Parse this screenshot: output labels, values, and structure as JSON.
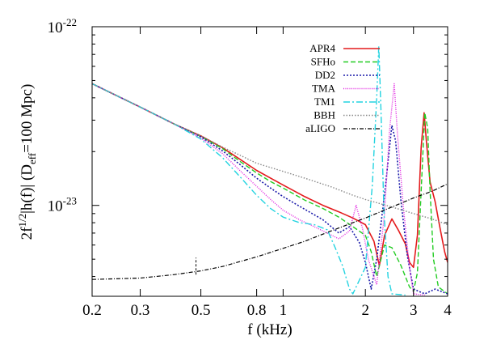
{
  "chart_data": {
    "type": "line",
    "xlabel": "f (kHz)",
    "ylabel_parts": [
      "2f",
      "1/2",
      "|h(f)| (D",
      "eff",
      "=100 Mpc)"
    ],
    "x_scale": "log",
    "y_scale": "log",
    "xlim": [
      0.2,
      4
    ],
    "ylim": [
      3.1e-24,
      1e-22
    ],
    "grid": false,
    "legend_position": "top-right",
    "x_ticks": [
      {
        "value": 0.2,
        "label": "0.2"
      },
      {
        "value": 0.3,
        "label": "0.3"
      },
      {
        "value": 0.5,
        "label": "0.5"
      },
      {
        "value": 0.8,
        "label": "0.8"
      },
      {
        "value": 1,
        "label": "1"
      },
      {
        "value": 2,
        "label": "2"
      },
      {
        "value": 3,
        "label": "3"
      },
      {
        "value": 4,
        "label": "4"
      }
    ],
    "y_ticks": [
      {
        "value": 1e-22,
        "base": "10",
        "exp": "-22"
      },
      {
        "value": 1e-23,
        "base": "10",
        "exp": "-23"
      }
    ],
    "series": [
      {
        "name": "APR4",
        "color": "#e41a1c",
        "dash": "",
        "width": 1.6,
        "points": [
          [
            0.2,
            4.8e-23
          ],
          [
            0.3,
            3.55e-23
          ],
          [
            0.4,
            2.85e-23
          ],
          [
            0.5,
            2.45e-23
          ],
          [
            0.6,
            2.1e-23
          ],
          [
            0.7,
            1.8e-23
          ],
          [
            0.8,
            1.57e-23
          ],
          [
            0.9,
            1.42e-23
          ],
          [
            1.0,
            1.3e-23
          ],
          [
            1.2,
            1.12e-23
          ],
          [
            1.4,
            1e-23
          ],
          [
            1.6,
            9.2e-24
          ],
          [
            1.8,
            8.5e-24
          ],
          [
            2.0,
            7.8e-24
          ],
          [
            2.15,
            6.3e-24
          ],
          [
            2.25,
            4.6e-24
          ],
          [
            2.35,
            6.8e-24
          ],
          [
            2.5,
            8.4e-24
          ],
          [
            2.65,
            7.2e-24
          ],
          [
            2.8,
            6.1e-24
          ],
          [
            2.9,
            4.8e-24
          ],
          [
            3.0,
            4.5e-24
          ],
          [
            3.1,
            6.8e-24
          ],
          [
            3.2,
            2.1e-23
          ],
          [
            3.28,
            3.3e-23
          ],
          [
            3.35,
            2.2e-23
          ],
          [
            3.45,
            1.35e-23
          ],
          [
            3.6,
            1.05e-23
          ],
          [
            3.75,
            7.5e-24
          ],
          [
            3.9,
            5.5e-24
          ],
          [
            4.0,
            4.8e-24
          ]
        ]
      },
      {
        "name": "SFHo",
        "color": "#22cc22",
        "dash": "6,3",
        "width": 1.4,
        "points": [
          [
            0.2,
            4.8e-23
          ],
          [
            0.3,
            3.55e-23
          ],
          [
            0.4,
            2.85e-23
          ],
          [
            0.5,
            2.43e-23
          ],
          [
            0.6,
            2.08e-23
          ],
          [
            0.7,
            1.75e-23
          ],
          [
            0.8,
            1.52e-23
          ],
          [
            0.9,
            1.36e-23
          ],
          [
            1.0,
            1.25e-23
          ],
          [
            1.2,
            1.07e-23
          ],
          [
            1.4,
            9.6e-24
          ],
          [
            1.6,
            8.6e-24
          ],
          [
            1.8,
            7.6e-24
          ],
          [
            2.0,
            6.8e-24
          ],
          [
            2.1,
            5.5e-24
          ],
          [
            2.2,
            4e-24
          ],
          [
            2.35,
            6e-24
          ],
          [
            2.5,
            5.8e-24
          ],
          [
            2.7,
            4.6e-24
          ],
          [
            2.9,
            3.5e-24
          ],
          [
            3.0,
            3.3e-24
          ],
          [
            3.1,
            4.2e-24
          ],
          [
            3.2,
            1.2e-23
          ],
          [
            3.3,
            3.3e-23
          ],
          [
            3.38,
            2.7e-23
          ],
          [
            3.45,
            1.2e-23
          ],
          [
            3.55,
            5e-24
          ],
          [
            3.7,
            3.5e-24
          ],
          [
            4.0,
            3.2e-24
          ]
        ]
      },
      {
        "name": "DD2",
        "color": "#1a1aaa",
        "dash": "2,2",
        "width": 1.6,
        "points": [
          [
            0.2,
            4.8e-23
          ],
          [
            0.3,
            3.55e-23
          ],
          [
            0.4,
            2.85e-23
          ],
          [
            0.5,
            2.42e-23
          ],
          [
            0.6,
            2.02e-23
          ],
          [
            0.7,
            1.68e-23
          ],
          [
            0.8,
            1.42e-23
          ],
          [
            0.9,
            1.25e-23
          ],
          [
            1.0,
            1.12e-23
          ],
          [
            1.2,
            9.5e-24
          ],
          [
            1.4,
            8.3e-24
          ],
          [
            1.5,
            7.6e-24
          ],
          [
            1.6,
            7e-24
          ],
          [
            1.75,
            7.6e-24
          ],
          [
            1.9,
            6.2e-24
          ],
          [
            2.0,
            4.8e-24
          ],
          [
            2.1,
            3.4e-24
          ],
          [
            2.2,
            5e-24
          ],
          [
            2.35,
            1.15e-23
          ],
          [
            2.5,
            2.8e-23
          ],
          [
            2.58,
            2.3e-23
          ],
          [
            2.7,
            1.05e-23
          ],
          [
            2.85,
            5.2e-24
          ],
          [
            3.0,
            3.4e-24
          ],
          [
            3.3,
            3.2e-24
          ],
          [
            3.6,
            3.4e-24
          ],
          [
            4.0,
            3.2e-24
          ]
        ]
      },
      {
        "name": "TMA",
        "color": "#e020e0",
        "dash": "1,1.5",
        "width": 1.4,
        "points": [
          [
            0.2,
            4.8e-23
          ],
          [
            0.3,
            3.55e-23
          ],
          [
            0.4,
            2.85e-23
          ],
          [
            0.5,
            2.38e-23
          ],
          [
            0.6,
            1.95e-23
          ],
          [
            0.7,
            1.55e-23
          ],
          [
            0.8,
            1.28e-23
          ],
          [
            0.9,
            1.08e-23
          ],
          [
            1.0,
            9.4e-24
          ],
          [
            1.15,
            8.3e-24
          ],
          [
            1.3,
            7.6e-24
          ],
          [
            1.45,
            7e-24
          ],
          [
            1.6,
            6.5e-24
          ],
          [
            1.75,
            7.2e-24
          ],
          [
            1.85,
            1e-23
          ],
          [
            1.95,
            7.5e-24
          ],
          [
            2.05,
            5e-24
          ],
          [
            2.2,
            3.6e-24
          ],
          [
            2.35,
            9e-24
          ],
          [
            2.45,
            2.6e-23
          ],
          [
            2.55,
            4.8e-23
          ],
          [
            2.62,
            2.5e-23
          ],
          [
            2.75,
            1e-23
          ],
          [
            2.9,
            4.5e-24
          ],
          [
            3.0,
            3.2e-24
          ],
          [
            3.3,
            3.15e-24
          ]
        ]
      },
      {
        "name": "TM1",
        "color": "#22d3e0",
        "dash": "8,3,2,3",
        "width": 1.4,
        "points": [
          [
            0.2,
            4.8e-23
          ],
          [
            0.3,
            3.55e-23
          ],
          [
            0.4,
            2.85e-23
          ],
          [
            0.5,
            2.35e-23
          ],
          [
            0.6,
            1.85e-23
          ],
          [
            0.7,
            1.43e-23
          ],
          [
            0.8,
            1.14e-23
          ],
          [
            0.9,
            9.6e-24
          ],
          [
            1.0,
            8.6e-24
          ],
          [
            1.15,
            8e-24
          ],
          [
            1.3,
            7.8e-24
          ],
          [
            1.45,
            7.3e-24
          ],
          [
            1.55,
            5.8e-24
          ],
          [
            1.65,
            4.6e-24
          ],
          [
            1.75,
            3.4e-24
          ],
          [
            1.8,
            3.2e-24
          ],
          [
            2.0,
            4.5e-24
          ],
          [
            2.12,
            1.3e-23
          ],
          [
            2.2,
            4e-23
          ],
          [
            2.24,
            7.8e-23
          ],
          [
            2.28,
            3.5e-23
          ],
          [
            2.34,
            9e-24
          ],
          [
            2.42,
            4e-24
          ],
          [
            2.5,
            3.2e-24
          ],
          [
            2.8,
            3.15e-24
          ]
        ]
      },
      {
        "name": "BBH",
        "color": "#888888",
        "dash": "1.5,2",
        "width": 1.4,
        "points": [
          [
            0.2,
            4.8e-23
          ],
          [
            0.3,
            3.55e-23
          ],
          [
            0.4,
            2.85e-23
          ],
          [
            0.5,
            2.45e-23
          ],
          [
            0.6,
            2.12e-23
          ],
          [
            0.7,
            1.9e-23
          ],
          [
            0.8,
            1.72e-23
          ],
          [
            1.0,
            1.55e-23
          ],
          [
            1.2,
            1.42e-23
          ],
          [
            1.5,
            1.27e-23
          ],
          [
            1.8,
            1.14e-23
          ],
          [
            2.0,
            1.08e-23
          ],
          [
            2.5,
            9.8e-24
          ],
          [
            3.0,
            9e-24
          ],
          [
            3.5,
            8.4e-24
          ],
          [
            4.0,
            7.8e-24
          ]
        ]
      },
      {
        "name": "aLIGO",
        "color": "#000000",
        "dash": "5,2,1,2",
        "width": 1.2,
        "points": [
          [
            0.2,
            3.85e-24
          ],
          [
            0.3,
            3.92e-24
          ],
          [
            0.4,
            4.1e-24
          ],
          [
            0.5,
            4.3e-24
          ],
          [
            0.6,
            4.55e-24
          ],
          [
            0.8,
            5.15e-24
          ],
          [
            1.0,
            5.75e-24
          ],
          [
            1.2,
            6.3e-24
          ],
          [
            1.5,
            7.2e-24
          ],
          [
            2.0,
            8.5e-24
          ],
          [
            2.5,
            9.8e-24
          ],
          [
            3.0,
            1.1e-23
          ],
          [
            3.5,
            1.2e-23
          ],
          [
            4.0,
            1.32e-23
          ]
        ]
      }
    ],
    "annotation_line": {
      "x": 0.48,
      "y_range": [
        4.1e-24,
        5.1e-24
      ]
    }
  }
}
